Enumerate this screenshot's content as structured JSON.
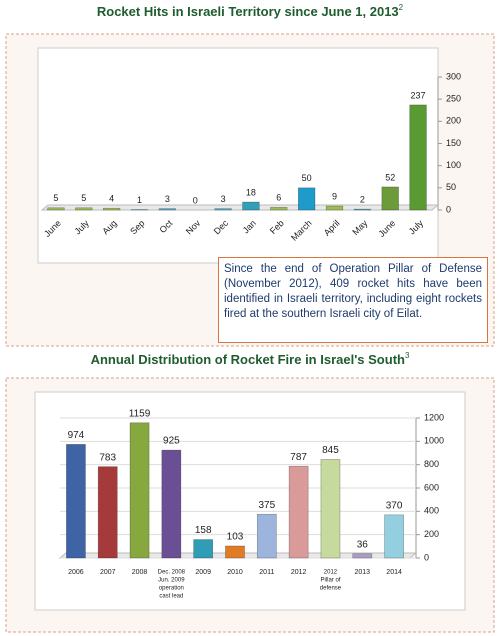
{
  "chart_data": [
    {
      "type": "bar",
      "title": "Rocket Hits in Israeli Territory since June 1, 2013",
      "title_footnote": "2",
      "categories": [
        "June",
        "July",
        "Aug",
        "Sep",
        "Oct",
        "Nov",
        "Dec",
        "Jan",
        "Feb",
        "March",
        "April",
        "May",
        "June",
        "July"
      ],
      "values": [
        5,
        5,
        4,
        1,
        3,
        0,
        3,
        18,
        6,
        50,
        9,
        2,
        52,
        237
      ],
      "colors": [
        "#9bbb59",
        "#9bbb59",
        "#9bbb59",
        "#4aacc6",
        "#4aacc6",
        "#4aacc6",
        "#4aacc6",
        "#31a0b8",
        "#9bbb59",
        "#1f9bc9",
        "#9bbb59",
        "#4aacc6",
        "#6e9b3a",
        "#5a9a32"
      ],
      "ylim": [
        0,
        300
      ],
      "yticks": [
        0,
        50,
        100,
        150,
        200,
        250,
        300
      ],
      "y_axis_side": "right",
      "grid": false,
      "annotation": "Since the end of Operation Pillar of Defense (November 2012), 409 rocket hits have been identified in Israeli territory, including eight rockets fired at the southern Israeli city of Eilat."
    },
    {
      "type": "bar",
      "title": "Annual Distribution of Rocket Fire in Israel's South",
      "title_footnote": "3",
      "categories": [
        "2006",
        "2007",
        "2008",
        [
          "Dec. 2008",
          "Jun. 2009",
          "operation",
          "cast lead"
        ],
        "2009",
        "2010",
        "2011",
        "2012",
        [
          "2012",
          "Pillar of",
          "defense"
        ],
        "2013",
        "2014"
      ],
      "values": [
        974,
        783,
        1159,
        925,
        158,
        103,
        375,
        787,
        845,
        36,
        370
      ],
      "colors": [
        "#3e64a6",
        "#a63a3a",
        "#86a83e",
        "#6b4f95",
        "#2f9db5",
        "#e07b26",
        "#9db4dc",
        "#d99a9a",
        "#c5da9c",
        "#ab9dc8",
        "#93cfde"
      ],
      "ylim": [
        0,
        1200
      ],
      "yticks": [
        0,
        200,
        400,
        600,
        800,
        1000,
        1200
      ],
      "y_axis_side": "right",
      "grid": true
    }
  ]
}
